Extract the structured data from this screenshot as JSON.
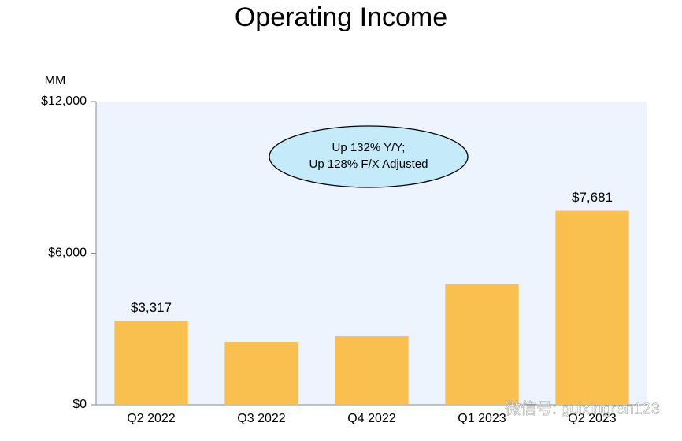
{
  "chart_data": {
    "type": "bar",
    "title": "Operating Income",
    "y_unit_label": "MM",
    "categories": [
      "Q2 2022",
      "Q3 2022",
      "Q4 2022",
      "Q1 2023",
      "Q2 2023"
    ],
    "values": [
      3317,
      2494,
      2712,
      4774,
      7681
    ],
    "value_labels": [
      "$3,317",
      null,
      null,
      null,
      "$7,681"
    ],
    "color": "#f9c04f",
    "plot_background": "#eef4fd",
    "ylim": [
      0,
      12000
    ],
    "yticks": [
      {
        "value": 0,
        "label": "$0"
      },
      {
        "value": 6000,
        "label": "$6,000"
      },
      {
        "value": 12000,
        "label": "$12,000"
      }
    ],
    "annotation": [
      "Up 132% Y/Y;",
      "Up 128% F/X Adjusted"
    ],
    "watermark": "微信号: guixingren123"
  }
}
